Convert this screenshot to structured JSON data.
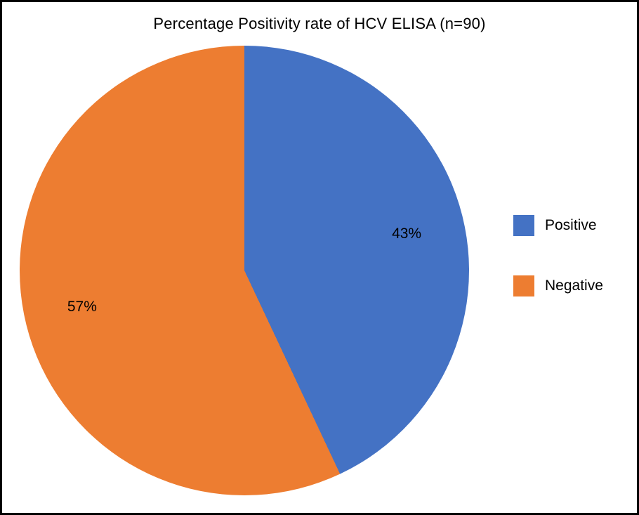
{
  "chart_data": {
    "type": "pie",
    "title": "Percentage Positivity rate of HCV ELISA (n=90)",
    "categories": [
      "Positive",
      "Negative"
    ],
    "values": [
      43,
      57
    ],
    "labels": [
      "43%",
      "57%"
    ],
    "unit": "%",
    "n": 90,
    "colors": [
      "#4472c4",
      "#ed7d31"
    ],
    "legend_position": "right",
    "start_angle_deg": 0,
    "direction": "clockwise",
    "background": "#ffffff",
    "border_color": "#000000"
  }
}
